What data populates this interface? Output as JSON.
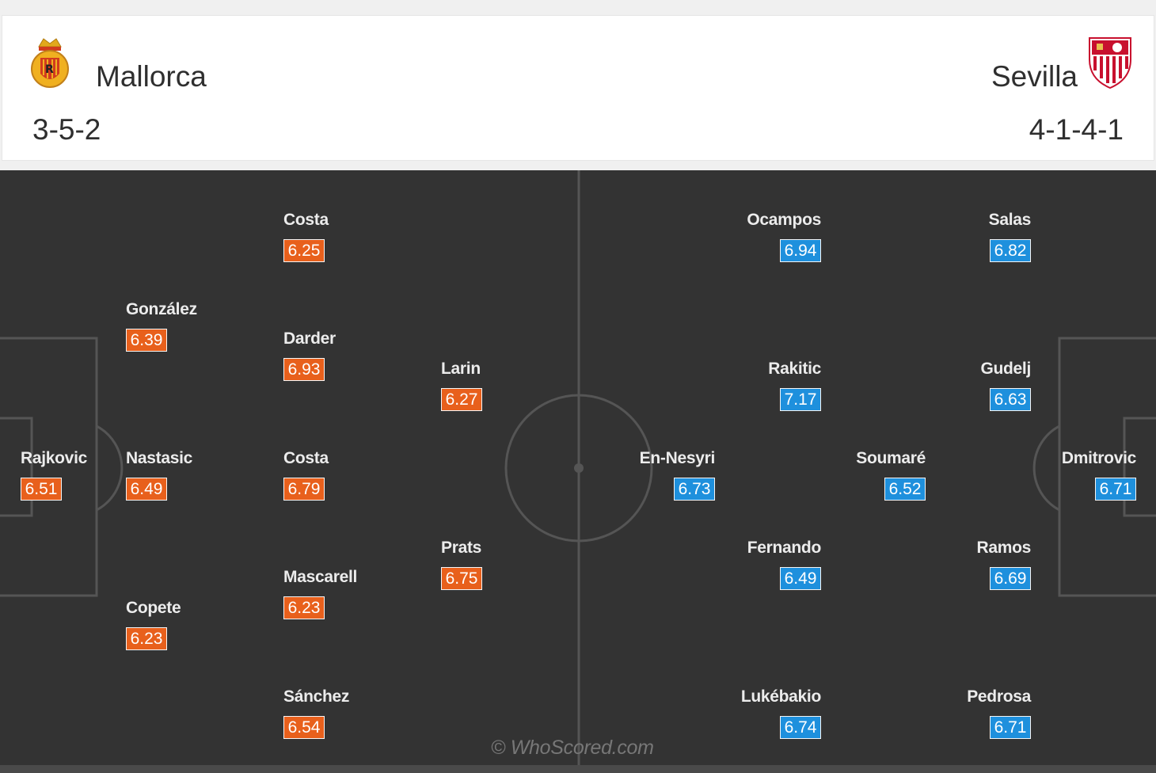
{
  "home": {
    "name": "Mallorca",
    "formation": "3-5-2",
    "color": "#e8601c",
    "crest_icon": "mallorca-crest-icon",
    "players": [
      {
        "name": "Rajkovic",
        "rating": "6.51"
      },
      {
        "name": "González",
        "rating": "6.39"
      },
      {
        "name": "Nastasic",
        "rating": "6.49"
      },
      {
        "name": "Copete",
        "rating": "6.23"
      },
      {
        "name": "Costa",
        "rating": "6.25"
      },
      {
        "name": "Darder",
        "rating": "6.93"
      },
      {
        "name": "Costa",
        "rating": "6.79"
      },
      {
        "name": "Mascarell",
        "rating": "6.23"
      },
      {
        "name": "Sánchez",
        "rating": "6.54"
      },
      {
        "name": "Larin",
        "rating": "6.27"
      },
      {
        "name": "Prats",
        "rating": "6.75"
      }
    ]
  },
  "away": {
    "name": "Sevilla",
    "formation": "4-1-4-1",
    "color": "#1e90dd",
    "crest_icon": "sevilla-crest-icon",
    "players": [
      {
        "name": "Ocampos",
        "rating": "6.94"
      },
      {
        "name": "Rakitic",
        "rating": "7.17"
      },
      {
        "name": "En-Nesyri",
        "rating": "6.73"
      },
      {
        "name": "Fernando",
        "rating": "6.49"
      },
      {
        "name": "Lukébakio",
        "rating": "6.74"
      },
      {
        "name": "Soumaré",
        "rating": "6.52"
      },
      {
        "name": "Salas",
        "rating": "6.82"
      },
      {
        "name": "Gudelj",
        "rating": "6.63"
      },
      {
        "name": "Ramos",
        "rating": "6.69"
      },
      {
        "name": "Pedrosa",
        "rating": "6.71"
      },
      {
        "name": "Dmitrovic",
        "rating": "6.71"
      }
    ]
  },
  "watermark": "© WhoScored.com"
}
